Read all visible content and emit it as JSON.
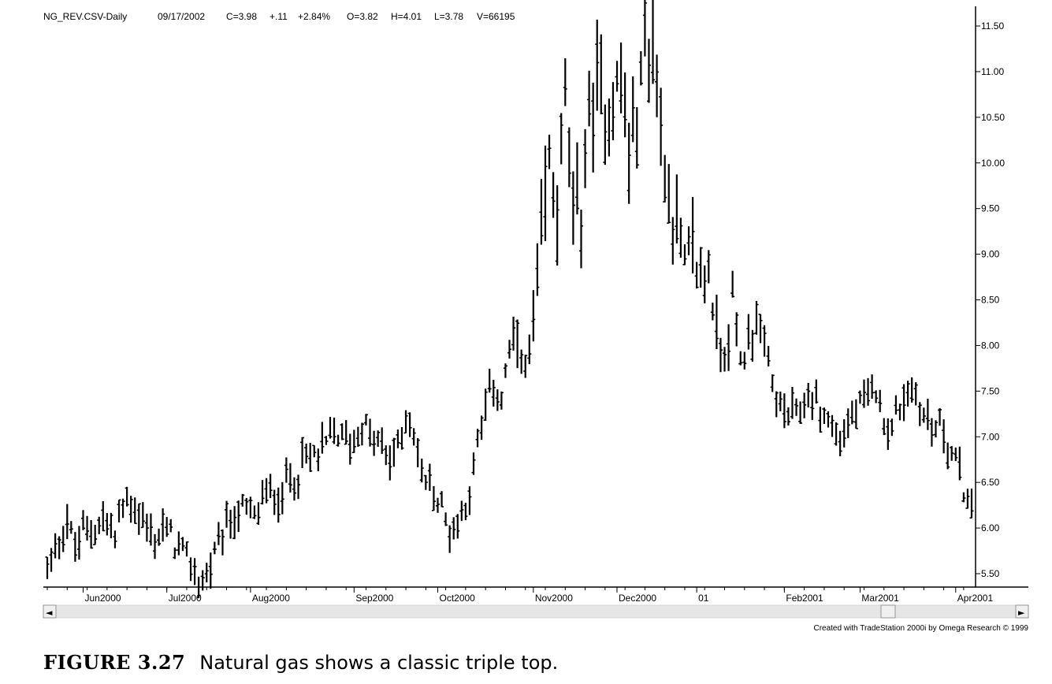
{
  "header": {
    "symbol": "NG_REV.CSV-Daily",
    "date": "09/17/2002",
    "close": "C=3.98",
    "change": "+.11",
    "pct": "+2.84%",
    "open": "O=3.82",
    "high": "H=4.01",
    "low": "L=3.78",
    "volume": "V=66195"
  },
  "credit": "Created with TradeStation 2000i by Omega Research © 1999",
  "caption": {
    "label": "FIGURE 3.27",
    "text": "Natural gas shows a classic triple top."
  },
  "scrollbar": {
    "left_arrow": "◄",
    "right_arrow": "►"
  },
  "chart_data": {
    "type": "ohlc_bar",
    "ylim": [
      5.35,
      11.6
    ],
    "yticks": [
      "11.50",
      "11.00",
      "10.50",
      "10.00",
      "9.50",
      "9.00",
      "8.50",
      "8.00",
      "7.50",
      "7.00",
      "6.50",
      "6.00",
      "5.50"
    ],
    "xlabels": [
      {
        "label": "Jun2000",
        "bar": 9
      },
      {
        "label": "Jul2000",
        "bar": 30
      },
      {
        "label": "Aug2000",
        "bar": 51
      },
      {
        "label": "Sep2000",
        "bar": 77
      },
      {
        "label": "Oct2000",
        "bar": 98
      },
      {
        "label": "Nov2000",
        "bar": 122
      },
      {
        "label": "Dec2000",
        "bar": 143
      },
      {
        "label": "01",
        "bar": 163
      },
      {
        "label": "Feb2001",
        "bar": 185
      },
      {
        "label": "Mar2001",
        "bar": 204
      },
      {
        "label": "Apr2001",
        "bar": 228
      }
    ],
    "anchors": [
      [
        0,
        5.55
      ],
      [
        3,
        5.9
      ],
      [
        5,
        6.1
      ],
      [
        7,
        5.75
      ],
      [
        9,
        5.95
      ],
      [
        11,
        6.0
      ],
      [
        14,
        6.1
      ],
      [
        17,
        5.9
      ],
      [
        19,
        6.25
      ],
      [
        21,
        6.3
      ],
      [
        23,
        6.15
      ],
      [
        25,
        6.0
      ],
      [
        27,
        5.85
      ],
      [
        29,
        6.0
      ],
      [
        31,
        5.9
      ],
      [
        33,
        5.75
      ],
      [
        35,
        5.65
      ],
      [
        37,
        5.5
      ],
      [
        39,
        5.42
      ],
      [
        41,
        5.58
      ],
      [
        43,
        5.75
      ],
      [
        45,
        6.0
      ],
      [
        47,
        6.15
      ],
      [
        49,
        6.2
      ],
      [
        52,
        6.1
      ],
      [
        54,
        6.3
      ],
      [
        56,
        6.4
      ],
      [
        58,
        6.35
      ],
      [
        60,
        6.5
      ],
      [
        62,
        6.6
      ],
      [
        64,
        6.7
      ],
      [
        67,
        6.8
      ],
      [
        70,
        6.9
      ],
      [
        72,
        7.05
      ],
      [
        74,
        7.0
      ],
      [
        76,
        6.95
      ],
      [
        78,
        7.05
      ],
      [
        80,
        7.1
      ],
      [
        82,
        6.95
      ],
      [
        84,
        6.85
      ],
      [
        86,
        6.75
      ],
      [
        88,
        6.9
      ],
      [
        90,
        7.2
      ],
      [
        92,
        7.05
      ],
      [
        94,
        6.6
      ],
      [
        96,
        6.45
      ],
      [
        98,
        6.3
      ],
      [
        100,
        6.1
      ],
      [
        102,
        5.95
      ],
      [
        104,
        6.2
      ],
      [
        106,
        6.4
      ],
      [
        108,
        6.95
      ],
      [
        110,
        7.3
      ],
      [
        112,
        7.6
      ],
      [
        114,
        7.4
      ],
      [
        116,
        7.9
      ],
      [
        118,
        8.1
      ],
      [
        120,
        7.65
      ],
      [
        122,
        8.2
      ],
      [
        124,
        9.1
      ],
      [
        126,
        10.0
      ],
      [
        128,
        9.6
      ],
      [
        130,
        10.7
      ],
      [
        132,
        9.2
      ],
      [
        134,
        9.6
      ],
      [
        136,
        10.5
      ],
      [
        138,
        10.8
      ],
      [
        140,
        10.65
      ],
      [
        142,
        10.8
      ],
      [
        144,
        10.9
      ],
      [
        146,
        10.2
      ],
      [
        148,
        10.4
      ],
      [
        150,
        11.3
      ],
      [
        152,
        11.3
      ],
      [
        154,
        10.3
      ],
      [
        156,
        9.8
      ],
      [
        158,
        9.3
      ],
      [
        160,
        8.8
      ],
      [
        162,
        9.1
      ],
      [
        164,
        8.7
      ],
      [
        166,
        8.85
      ],
      [
        168,
        8.1
      ],
      [
        170,
        7.9
      ],
      [
        172,
        8.5
      ],
      [
        174,
        7.8
      ],
      [
        176,
        8.1
      ],
      [
        178,
        8.3
      ],
      [
        180,
        7.9
      ],
      [
        182,
        7.6
      ],
      [
        184,
        7.3
      ],
      [
        186,
        7.2
      ],
      [
        188,
        7.25
      ],
      [
        190,
        7.35
      ],
      [
        192,
        7.45
      ],
      [
        194,
        7.3
      ],
      [
        196,
        7.2
      ],
      [
        198,
        7.0
      ],
      [
        200,
        7.05
      ],
      [
        202,
        7.2
      ],
      [
        204,
        7.3
      ],
      [
        206,
        7.4
      ],
      [
        208,
        7.55
      ],
      [
        210,
        7.2
      ],
      [
        212,
        7.1
      ],
      [
        214,
        7.35
      ],
      [
        216,
        7.5
      ],
      [
        218,
        7.45
      ],
      [
        220,
        7.25
      ],
      [
        222,
        7.1
      ],
      [
        224,
        7.15
      ],
      [
        226,
        6.95
      ],
      [
        228,
        6.7
      ],
      [
        230,
        6.45
      ],
      [
        232,
        6.15
      ]
    ]
  }
}
